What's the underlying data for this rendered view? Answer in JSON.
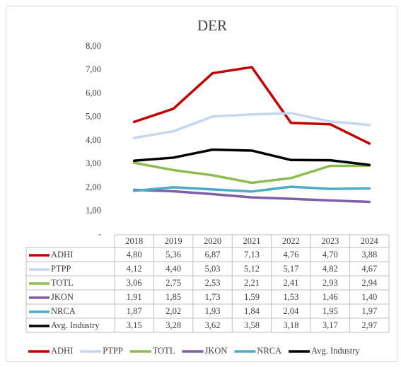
{
  "chart_data": {
    "type": "line",
    "title": "DER",
    "categories": [
      "2018",
      "2019",
      "2020",
      "2021",
      "2022",
      "2023",
      "2024"
    ],
    "ylim": [
      0,
      8
    ],
    "yticks": [
      {
        "value": 0,
        "label": "-"
      },
      {
        "value": 1,
        "label": "1,00"
      },
      {
        "value": 2,
        "label": "2,00"
      },
      {
        "value": 3,
        "label": "3,00"
      },
      {
        "value": 4,
        "label": "4,00"
      },
      {
        "value": 5,
        "label": "5,00"
      },
      {
        "value": 6,
        "label": "6,00"
      },
      {
        "value": 7,
        "label": "7,00"
      },
      {
        "value": 8,
        "label": "8,00"
      }
    ],
    "grid": false,
    "legend": "bottom",
    "series": [
      {
        "name": "ADHI",
        "color": "#c00000",
        "values": [
          4.8,
          5.36,
          6.87,
          7.13,
          4.76,
          4.7,
          3.88
        ],
        "value_labels": [
          "4,80",
          "5,36",
          "6,87",
          "7,13",
          "4,76",
          "4,70",
          "3,88"
        ]
      },
      {
        "name": "PTPP",
        "color": "#c6d6ef",
        "values": [
          4.12,
          4.4,
          5.03,
          5.12,
          5.17,
          4.82,
          4.67
        ],
        "value_labels": [
          "4,12",
          "4,40",
          "5,03",
          "5,12",
          "5,17",
          "4,82",
          "4,67"
        ]
      },
      {
        "name": "TOTL",
        "color": "#8fbc50",
        "values": [
          3.06,
          2.75,
          2.53,
          2.21,
          2.41,
          2.93,
          2.94
        ],
        "value_labels": [
          "3,06",
          "2,75",
          "2,53",
          "2,21",
          "2,41",
          "2,93",
          "2,94"
        ]
      },
      {
        "name": "JKON",
        "color": "#7f60a8",
        "values": [
          1.91,
          1.85,
          1.73,
          1.59,
          1.53,
          1.46,
          1.4
        ],
        "value_labels": [
          "1,91",
          "1,85",
          "1,73",
          "1,59",
          "1,53",
          "1,46",
          "1,40"
        ]
      },
      {
        "name": "NRCA",
        "color": "#4bacc6",
        "values": [
          1.87,
          2.02,
          1.93,
          1.84,
          2.04,
          1.95,
          1.97
        ],
        "value_labels": [
          "1,87",
          "2,02",
          "1,93",
          "1,84",
          "2,04",
          "1,95",
          "1,97"
        ]
      },
      {
        "name": "Avg. Industry",
        "color": "#000000",
        "values": [
          3.15,
          3.28,
          3.62,
          3.58,
          3.18,
          3.17,
          2.97
        ],
        "value_labels": [
          "3,15",
          "3,28",
          "3,62",
          "3,58",
          "3,18",
          "3,17",
          "2,97"
        ]
      }
    ]
  }
}
